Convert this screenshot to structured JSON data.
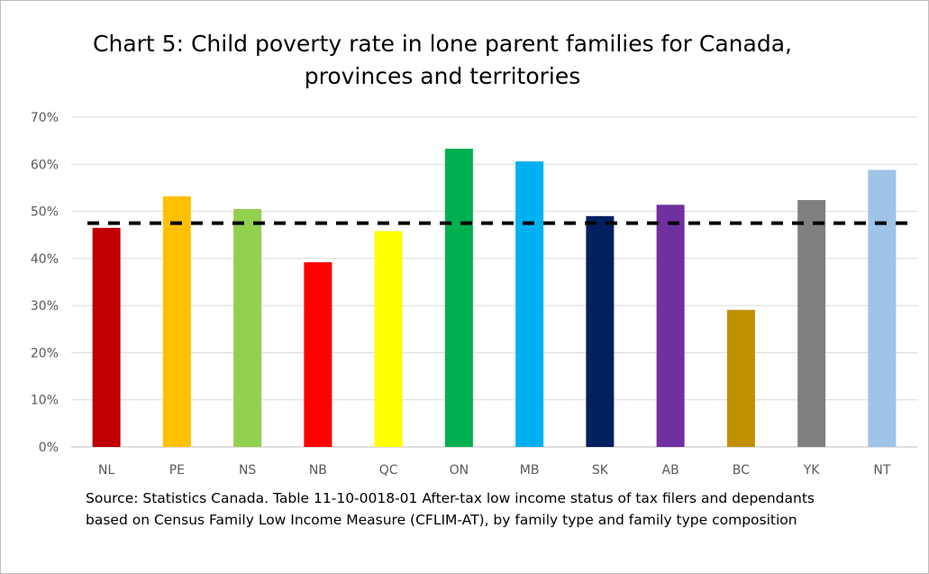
{
  "chart_data": {
    "type": "bar",
    "title_lines": [
      "Chart 5: Child poverty rate in lone parent families for Canada,",
      "provinces and territories"
    ],
    "categories": [
      "NL",
      "PE",
      "NS",
      "NB",
      "QC",
      "ON",
      "MB",
      "SK",
      "AB",
      "BC",
      "YK",
      "NT"
    ],
    "values": [
      46.5,
      53.2,
      50.5,
      39.2,
      45.8,
      63.3,
      60.6,
      49.0,
      51.4,
      29.1,
      52.4,
      58.8
    ],
    "colors": [
      "#c00000",
      "#ffc000",
      "#92d050",
      "#ff0000",
      "#ffff00",
      "#00b050",
      "#00b0f0",
      "#002060",
      "#7030a0",
      "#bf9000",
      "#808080",
      "#9dc3e6"
    ],
    "reference_line": {
      "value": 47.5,
      "style": "dashed",
      "color": "#000000"
    },
    "ylim": [
      0,
      70
    ],
    "yticks": [
      0,
      10,
      20,
      30,
      40,
      50,
      60,
      70
    ],
    "ytick_labels": [
      "0%",
      "10%",
      "20%",
      "30%",
      "40%",
      "50%",
      "60%",
      "70%"
    ],
    "grid": true,
    "legend": "none",
    "xlabel": "",
    "ylabel": ""
  },
  "source_text": "Source:  Statistics Canada. Table 11-10-0018-01 After-tax low income status of tax filers and dependants based on Census Family Low Income Measure (CFLIM-AT), by family type and family type composition"
}
